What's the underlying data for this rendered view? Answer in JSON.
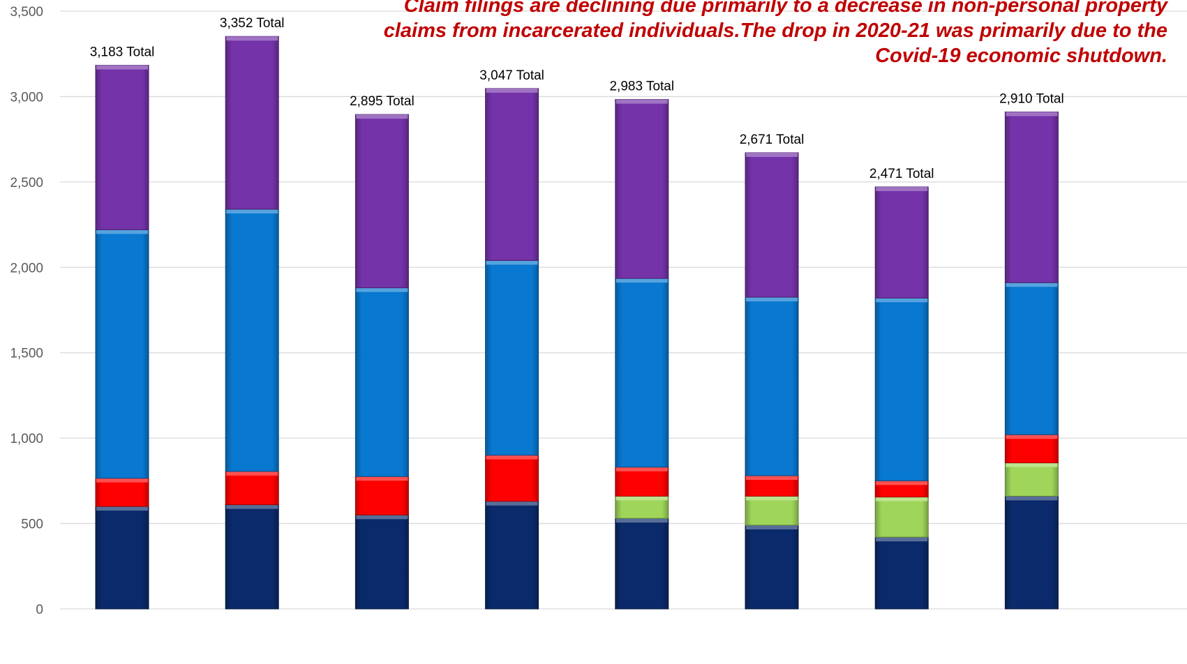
{
  "chart_data": {
    "type": "bar",
    "stacked": true,
    "title": "",
    "xlabel": "",
    "ylabel": "",
    "ylim": [
      0,
      3500
    ],
    "y_ticks": [
      "0",
      "500",
      "1,000",
      "1,500",
      "2,000",
      "2,500",
      "3,000",
      "3,500"
    ],
    "y_tick_values": [
      0,
      500,
      1000,
      1500,
      2000,
      2500,
      3000,
      3500
    ],
    "grid": true,
    "legend": "none",
    "annotation": "Claim filings are declining due primarily to a decrease in non-personal property\nclaims from incarcerated individuals.The drop in 2020-21 was primarily due to the\nCovid-19 economic shutdown.",
    "totals": [
      {
        "value": 3183,
        "label": "3,183 Total"
      },
      {
        "value": 3352,
        "label": "3,352 Total"
      },
      {
        "value": 2895,
        "label": "2,895 Total"
      },
      {
        "value": 3047,
        "label": "3,047 Total"
      },
      {
        "value": 2983,
        "label": "2,983 Total"
      },
      {
        "value": 2671,
        "label": "2,671 Total"
      },
      {
        "value": 2471,
        "label": "2,471 Total"
      },
      {
        "value": 2910,
        "label": "2,910 Total"
      }
    ],
    "series": [
      {
        "color": "#0b2a6b",
        "values": [
          600,
          610,
          550,
          630,
          530,
          490,
          420,
          660
        ]
      },
      {
        "color": "#9fd65a",
        "values": [
          0,
          0,
          0,
          0,
          130,
          170,
          235,
          195
        ]
      },
      {
        "color": "#ff0000",
        "values": [
          165,
          195,
          225,
          270,
          170,
          120,
          95,
          165
        ]
      },
      {
        "color": "#0878d0",
        "values": [
          1455,
          1535,
          1105,
          1140,
          1105,
          1045,
          1070,
          890
        ]
      },
      {
        "color": "#7433a8",
        "values": [
          963,
          1012,
          1015,
          1007,
          1048,
          846,
          651,
          1000
        ]
      }
    ]
  }
}
